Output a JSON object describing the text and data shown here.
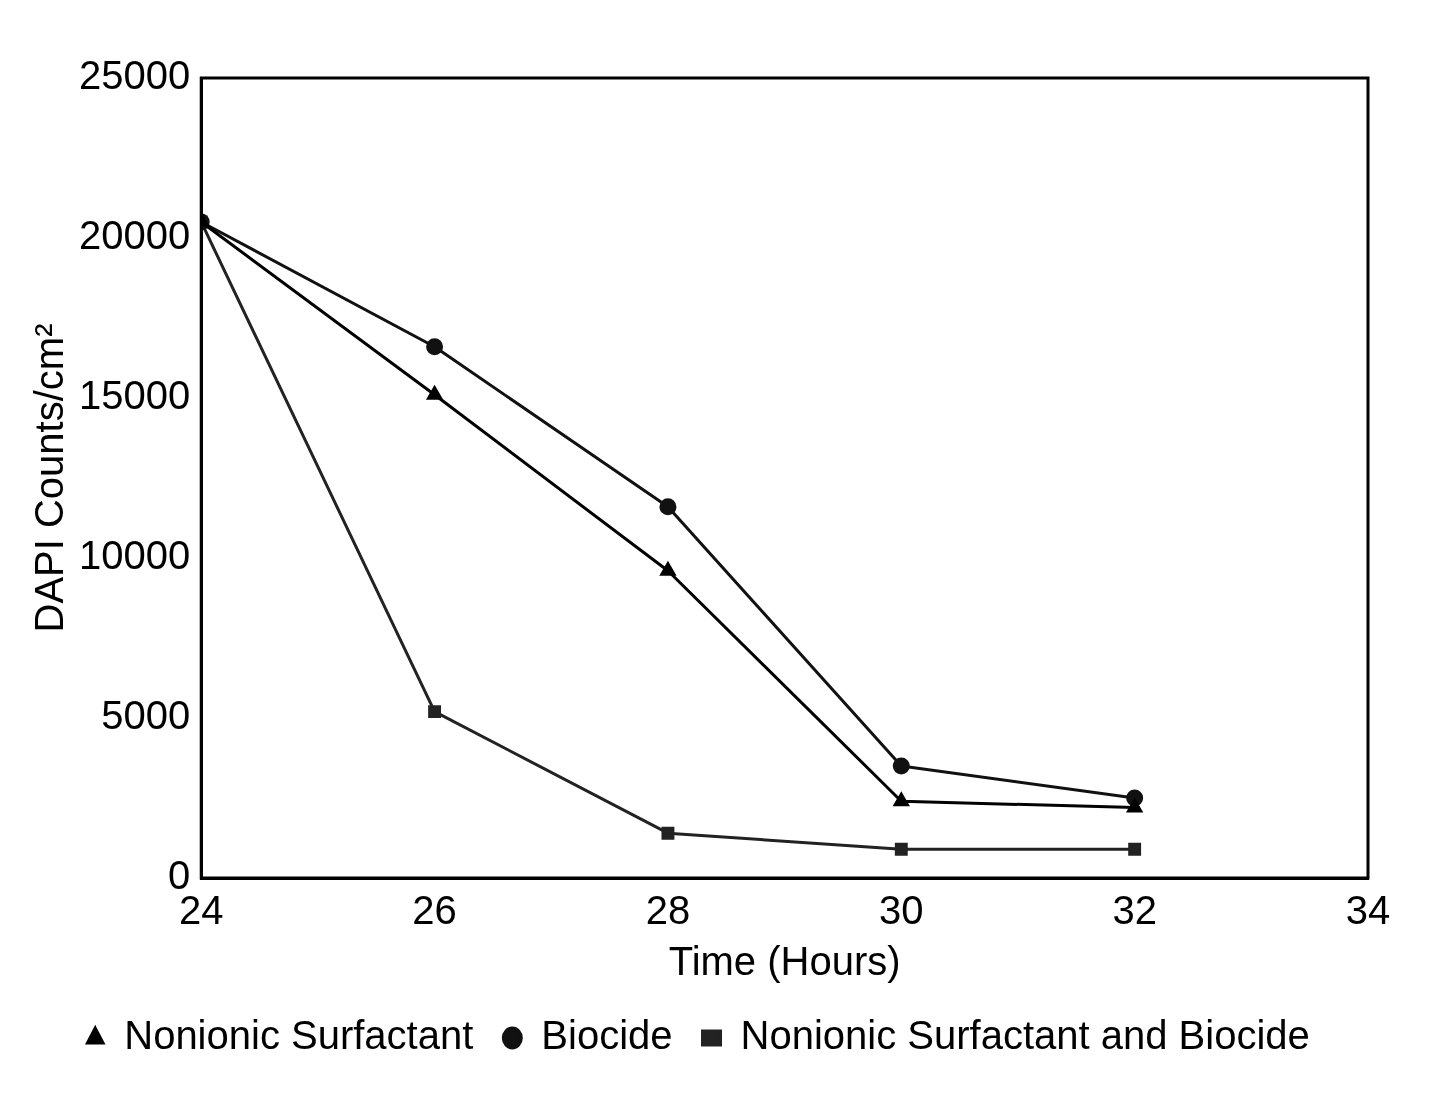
{
  "chart_data": {
    "type": "line",
    "xlabel": "Time (Hours)",
    "ylabel": "DAPI Counts/cm²",
    "xlim": [
      24,
      34
    ],
    "xticks": [
      24,
      26,
      28,
      30,
      32,
      34
    ],
    "ylim": [
      0,
      25000
    ],
    "yticks": [
      0,
      5000,
      10000,
      15000,
      20000,
      25000
    ],
    "x": [
      24,
      26,
      28,
      30,
      32
    ],
    "grid": false,
    "legend": "bottom",
    "line_style": "solid",
    "series": [
      {
        "name": "Nonionic Surfactant",
        "color": "#000000",
        "marker": "triangle",
        "values": [
          20500,
          15100,
          9600,
          2400,
          2200
        ]
      },
      {
        "name": "Biocide",
        "color": "#111111",
        "marker": "circle",
        "values": [
          20500,
          16600,
          11600,
          3500,
          2500
        ]
      },
      {
        "name": "Nonionic Surfactant and Biocide",
        "color": "#222222",
        "marker": "square",
        "values": [
          20500,
          5200,
          1400,
          900,
          900
        ]
      }
    ]
  }
}
